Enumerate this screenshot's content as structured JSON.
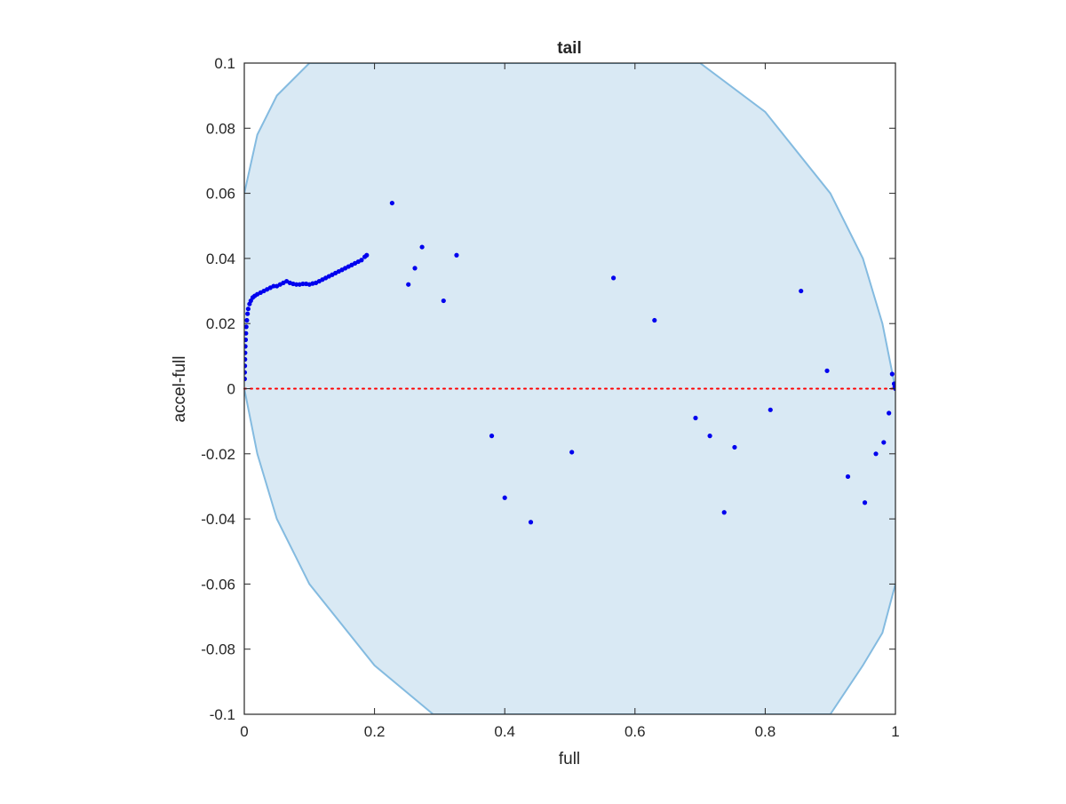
{
  "colors": {
    "band_fill": "#d9e9f4",
    "band_edge": "#84bbe0",
    "points": "#0000ee",
    "zero_line": "#ff0000",
    "axes": "#262626"
  },
  "chart_data": {
    "type": "scatter",
    "title": "tail",
    "xlabel": "full",
    "ylabel": "accel-full",
    "xlim": [
      0,
      1
    ],
    "ylim": [
      -0.1,
      0.1
    ],
    "x_ticks": [
      0,
      0.2,
      0.4,
      0.6,
      0.8,
      1
    ],
    "x_tick_labels": [
      "0",
      "0.2",
      "0.4",
      "0.6",
      "0.8",
      "1"
    ],
    "y_ticks": [
      -0.1,
      -0.08,
      -0.06,
      -0.04,
      -0.02,
      0,
      0.02,
      0.04,
      0.06,
      0.08,
      0.1
    ],
    "y_tick_labels": [
      "-0.1",
      "-0.08",
      "-0.06",
      "-0.04",
      "-0.02",
      "0",
      "0.02",
      "0.04",
      "0.06",
      "0.08",
      "0.1"
    ],
    "grid": false,
    "zero_line": {
      "y": 0,
      "style": "dotted"
    },
    "band_upper": [
      [
        0,
        0.06
      ],
      [
        0.02,
        0.078
      ],
      [
        0.05,
        0.09
      ],
      [
        0.1,
        0.1
      ],
      [
        0.3,
        0.1
      ],
      [
        0.5,
        0.1
      ],
      [
        0.7,
        0.1
      ],
      [
        0.8,
        0.085
      ],
      [
        0.9,
        0.06
      ],
      [
        0.95,
        0.04
      ],
      [
        0.98,
        0.02
      ],
      [
        1.0,
        0.0
      ]
    ],
    "band_lower": [
      [
        0,
        0.0
      ],
      [
        0.02,
        -0.02
      ],
      [
        0.05,
        -0.04
      ],
      [
        0.1,
        -0.06
      ],
      [
        0.2,
        -0.085
      ],
      [
        0.29,
        -0.1
      ],
      [
        0.5,
        -0.1
      ],
      [
        0.7,
        -0.1
      ],
      [
        0.9,
        -0.1
      ],
      [
        0.95,
        -0.085
      ],
      [
        0.98,
        -0.075
      ],
      [
        1.0,
        -0.06
      ]
    ],
    "points": [
      [
        0.0005,
        0.003
      ],
      [
        0.0006,
        0.005
      ],
      [
        0.0008,
        0.007
      ],
      [
        0.001,
        0.009
      ],
      [
        0.0012,
        0.011
      ],
      [
        0.0015,
        0.013
      ],
      [
        0.002,
        0.015
      ],
      [
        0.0025,
        0.017
      ],
      [
        0.003,
        0.019
      ],
      [
        0.004,
        0.021
      ],
      [
        0.005,
        0.023
      ],
      [
        0.006,
        0.0245
      ],
      [
        0.008,
        0.026
      ],
      [
        0.01,
        0.027
      ],
      [
        0.013,
        0.028
      ],
      [
        0.016,
        0.0285
      ],
      [
        0.02,
        0.029
      ],
      [
        0.025,
        0.0295
      ],
      [
        0.03,
        0.03
      ],
      [
        0.035,
        0.0305
      ],
      [
        0.04,
        0.031
      ],
      [
        0.045,
        0.0315
      ],
      [
        0.05,
        0.0315
      ],
      [
        0.055,
        0.032
      ],
      [
        0.06,
        0.0325
      ],
      [
        0.065,
        0.033
      ],
      [
        0.07,
        0.0325
      ],
      [
        0.075,
        0.0322
      ],
      [
        0.08,
        0.032
      ],
      [
        0.085,
        0.032
      ],
      [
        0.09,
        0.0322
      ],
      [
        0.095,
        0.0322
      ],
      [
        0.1,
        0.032
      ],
      [
        0.105,
        0.0323
      ],
      [
        0.11,
        0.0325
      ],
      [
        0.115,
        0.033
      ],
      [
        0.12,
        0.0335
      ],
      [
        0.125,
        0.034
      ],
      [
        0.13,
        0.0345
      ],
      [
        0.135,
        0.035
      ],
      [
        0.14,
        0.0355
      ],
      [
        0.145,
        0.036
      ],
      [
        0.15,
        0.0365
      ],
      [
        0.155,
        0.037
      ],
      [
        0.16,
        0.0375
      ],
      [
        0.165,
        0.038
      ],
      [
        0.17,
        0.0385
      ],
      [
        0.175,
        0.039
      ],
      [
        0.18,
        0.0395
      ],
      [
        0.185,
        0.0405
      ],
      [
        0.188,
        0.041
      ],
      [
        0.227,
        0.057
      ],
      [
        0.252,
        0.032
      ],
      [
        0.262,
        0.037
      ],
      [
        0.273,
        0.0435
      ],
      [
        0.306,
        0.027
      ],
      [
        0.326,
        0.041
      ],
      [
        0.38,
        -0.0145
      ],
      [
        0.4,
        -0.0335
      ],
      [
        0.44,
        -0.041
      ],
      [
        0.503,
        -0.0195
      ],
      [
        0.567,
        0.034
      ],
      [
        0.63,
        0.021
      ],
      [
        0.693,
        -0.009
      ],
      [
        0.715,
        -0.0145
      ],
      [
        0.737,
        -0.038
      ],
      [
        0.753,
        -0.018
      ],
      [
        0.808,
        -0.0065
      ],
      [
        0.855,
        0.03
      ],
      [
        0.895,
        0.0055
      ],
      [
        0.927,
        -0.027
      ],
      [
        0.953,
        -0.035
      ],
      [
        0.97,
        -0.02
      ],
      [
        0.982,
        -0.0165
      ],
      [
        0.99,
        -0.0075
      ],
      [
        0.995,
        0.0045
      ],
      [
        0.998,
        0.0015
      ],
      [
        0.999,
        0.0005
      ],
      [
        1.0,
        0.0
      ]
    ]
  }
}
